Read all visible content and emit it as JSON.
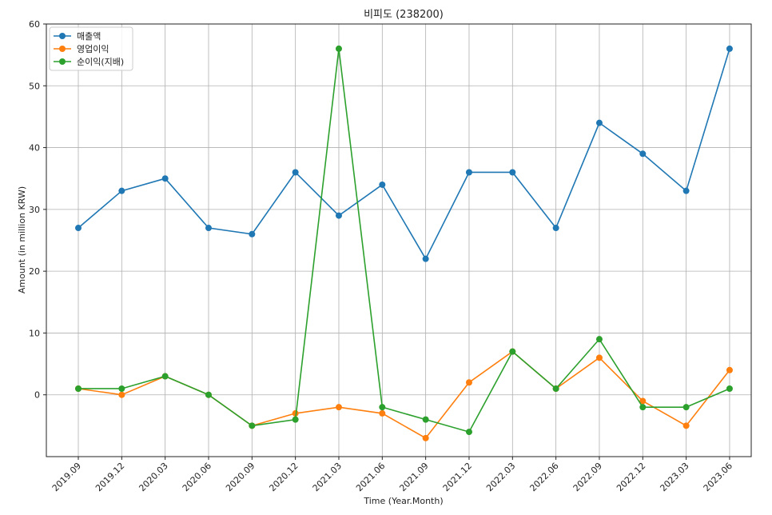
{
  "chart_data": {
    "type": "line",
    "title": "비피도 (238200)",
    "xlabel": "Time (Year.Month)",
    "ylabel": "Amount (in million KRW)",
    "categories": [
      "2019.09",
      "2019.12",
      "2020.03",
      "2020.06",
      "2020.09",
      "2020.12",
      "2021.03",
      "2021.06",
      "2021.09",
      "2021.12",
      "2022.03",
      "2022.06",
      "2022.09",
      "2022.12",
      "2023.03",
      "2023.06"
    ],
    "ylim": [
      -10,
      60
    ],
    "yticks": [
      0,
      10,
      20,
      30,
      40,
      50,
      60
    ],
    "grid": true,
    "legend_position": "top-left",
    "series": [
      {
        "name": "매출액",
        "color": "#1f77b4",
        "values": [
          27,
          33,
          35,
          27,
          26,
          36,
          29,
          34,
          22,
          36,
          36,
          27,
          44,
          39,
          33,
          56
        ]
      },
      {
        "name": "영업이익",
        "color": "#ff7f0e",
        "values": [
          1,
          0,
          3,
          0,
          -5,
          -3,
          -2,
          -3,
          -7,
          2,
          7,
          1,
          6,
          -1,
          -5,
          4
        ]
      },
      {
        "name": "순이익(지배)",
        "color": "#2ca02c",
        "values": [
          1,
          1,
          3,
          0,
          -5,
          -4,
          56,
          -2,
          -4,
          -6,
          7,
          1,
          9,
          -2,
          -2,
          1
        ]
      }
    ]
  }
}
